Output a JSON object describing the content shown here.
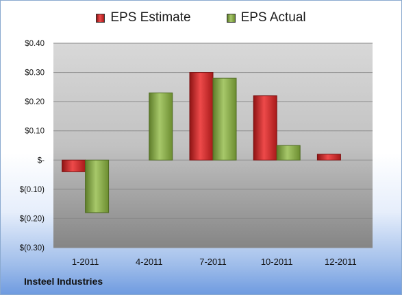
{
  "chart_data": {
    "type": "bar",
    "categories": [
      "1-2011",
      "4-2011",
      "7-2011",
      "10-2011",
      "12-2011"
    ],
    "series": [
      {
        "name": "EPS Estimate",
        "color": "#d42a2a",
        "values": [
          -0.04,
          null,
          0.3,
          0.22,
          0.02
        ]
      },
      {
        "name": "EPS Actual",
        "color": "#8db04e",
        "values": [
          -0.18,
          0.23,
          0.28,
          0.05,
          null
        ]
      }
    ],
    "ylim": [
      -0.3,
      0.4
    ],
    "yticks": [
      0.4,
      0.3,
      0.2,
      0.1,
      0.0,
      -0.1,
      -0.2,
      -0.3
    ],
    "ytick_labels": [
      "$0.40",
      "$0.30",
      "$0.20",
      "$0.10",
      "$-",
      "$(0.10)",
      "$(0.20)",
      "$(0.30)"
    ],
    "legend_position": "top",
    "grid": true
  },
  "footer": {
    "company": "Insteel Industries"
  }
}
